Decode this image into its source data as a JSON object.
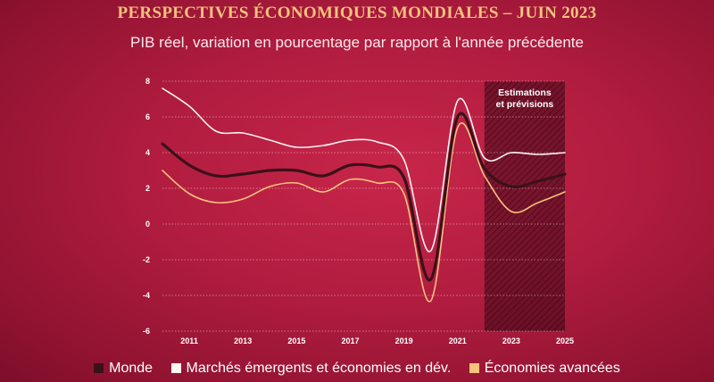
{
  "title": "PERSPECTIVES ÉCONOMIQUES MONDIALES – JUIN 2023",
  "subtitle": "PIB réel, variation en pourcentage par rapport à l'année précédente",
  "chart_data": {
    "type": "line",
    "x": [
      2010,
      2011,
      2012,
      2013,
      2014,
      2015,
      2016,
      2017,
      2018,
      2019,
      2020,
      2021,
      2022,
      2023,
      2024,
      2025
    ],
    "x_tick_labels": [
      "2011",
      "2013",
      "2015",
      "2017",
      "2019",
      "2021",
      "2023",
      "2025"
    ],
    "x_ticks": [
      2011,
      2013,
      2015,
      2017,
      2019,
      2021,
      2023,
      2025
    ],
    "y_ticks": [
      8,
      6,
      4,
      2,
      0,
      -2,
      -4,
      -6
    ],
    "xlim": [
      2010,
      2025
    ],
    "ylim": [
      -6,
      8
    ],
    "grid": "horizontal",
    "legend_position": "bottom",
    "annotation": {
      "lines": [
        "Estimations",
        "et prévisions"
      ],
      "shaded_from": 2022,
      "shaded_to": 2025
    },
    "series": [
      {
        "name": "Monde",
        "color": "#3b1118",
        "values": [
          4.5,
          3.3,
          2.7,
          2.8,
          3.0,
          3.0,
          2.7,
          3.3,
          3.2,
          2.6,
          -3.1,
          6.0,
          3.1,
          2.1,
          2.4,
          2.8
        ]
      },
      {
        "name": "Marchés émergents et économies en dév.",
        "color": "#fff4f4",
        "values": [
          7.6,
          6.6,
          5.2,
          5.1,
          4.7,
          4.3,
          4.4,
          4.7,
          4.6,
          3.6,
          -1.5,
          6.9,
          3.7,
          4.0,
          3.9,
          4.0
        ]
      },
      {
        "name": "Économies avancées",
        "color": "#f6c27d",
        "values": [
          3.0,
          1.7,
          1.2,
          1.4,
          2.1,
          2.3,
          1.8,
          2.5,
          2.3,
          1.7,
          -4.3,
          5.4,
          2.7,
          0.7,
          1.2,
          1.8
        ]
      }
    ]
  }
}
